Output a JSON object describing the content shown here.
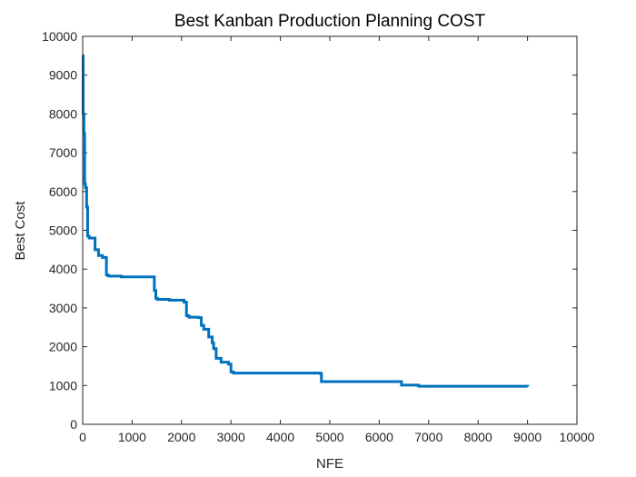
{
  "colors": {
    "series": "#0072bd",
    "axes": "#262626",
    "background": "#ffffff"
  },
  "chart_data": {
    "type": "line",
    "title": "Best Kanban Production Planning COST",
    "xlabel": "NFE",
    "ylabel": "Best Cost",
    "xlim": [
      0,
      10000
    ],
    "ylim": [
      0,
      10000
    ],
    "xticks": [
      0,
      1000,
      2000,
      3000,
      4000,
      5000,
      6000,
      7000,
      8000,
      9000,
      10000
    ],
    "yticks": [
      0,
      1000,
      2000,
      3000,
      4000,
      5000,
      6000,
      7000,
      8000,
      9000,
      10000
    ],
    "xtick_labels": [
      "0",
      "1000",
      "2000",
      "3000",
      "4000",
      "5000",
      "6000",
      "7000",
      "8000",
      "9000",
      "10000"
    ],
    "ytick_labels": [
      "0",
      "1000",
      "2000",
      "3000",
      "4000",
      "5000",
      "6000",
      "7000",
      "8000",
      "9000",
      "10000"
    ],
    "grid": false,
    "box": true,
    "step": true,
    "series": [
      {
        "x": [
          0,
          10,
          25,
          40,
          55,
          80,
          100,
          130,
          180,
          250,
          320,
          400,
          480,
          520,
          780,
          1450,
          1480,
          1510,
          1750,
          2050,
          2100,
          2150,
          2350,
          2400,
          2450,
          2550,
          2620,
          2650,
          2700,
          2800,
          2950,
          3000,
          3050,
          4800,
          4830,
          6450,
          6800,
          9000
        ],
        "y": [
          9500,
          8000,
          7500,
          6200,
          6100,
          5600,
          4850,
          4800,
          4800,
          4500,
          4350,
          4300,
          3850,
          3820,
          3800,
          3450,
          3250,
          3220,
          3200,
          3150,
          2800,
          2760,
          2750,
          2550,
          2450,
          2250,
          2100,
          1950,
          1700,
          1600,
          1550,
          1350,
          1320,
          1310,
          1100,
          1010,
          980,
          970
        ]
      }
    ]
  }
}
